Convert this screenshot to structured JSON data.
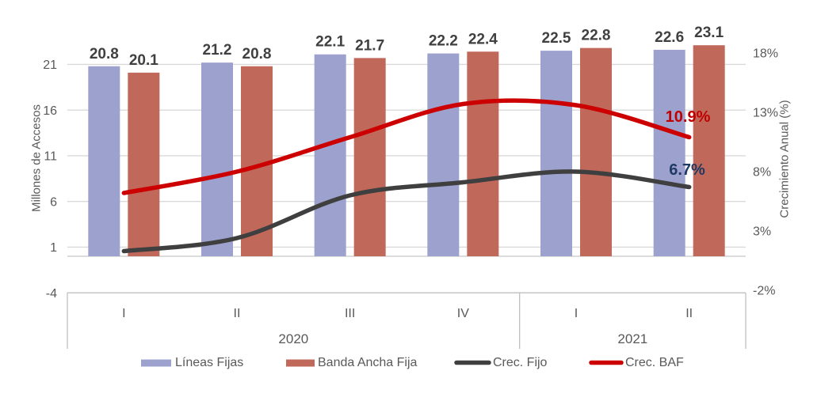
{
  "chart_data": {
    "type": "combo_bar_line",
    "quarters": [
      "I",
      "II",
      "III",
      "IV",
      "I",
      "II"
    ],
    "year_groups": [
      {
        "label": "2020",
        "count": 4
      },
      {
        "label": "2021",
        "count": 2
      }
    ],
    "bar_series": [
      {
        "name": "Líneas Fijas",
        "color": "#9CA1CE",
        "values": [
          20.8,
          21.2,
          22.1,
          22.2,
          22.5,
          22.6
        ]
      },
      {
        "name": "Banda Ancha Fija",
        "color": "#C0695B",
        "values": [
          20.1,
          20.8,
          21.7,
          22.4,
          22.8,
          23.1
        ]
      }
    ],
    "line_series": [
      {
        "name": "Crec. Fijo",
        "color": "#3F3F3F",
        "values_pct": [
          1.3,
          2.4,
          6.0,
          7.1,
          8.0,
          6.7
        ],
        "end_label": "6.7%",
        "end_label_color": "#1F3864"
      },
      {
        "name": "Crec. BAF",
        "color": "#CC0000",
        "values_pct": [
          6.2,
          8.0,
          10.9,
          13.7,
          13.6,
          10.9
        ],
        "end_label": "10.9%",
        "end_label_color": "#C00000"
      }
    ],
    "left_axis": {
      "title": "Millones de Accesos",
      "ticks": [
        -4,
        1,
        6,
        11,
        16,
        21
      ],
      "tick_labels": [
        "-4",
        "1",
        "6",
        "11",
        "16",
        "21"
      ],
      "min": -4,
      "max": 21
    },
    "right_axis": {
      "title": "Crecimiento Anual (%)",
      "ticks": [
        -2,
        3,
        8,
        13,
        18
      ],
      "tick_labels": [
        "-2%",
        "3%",
        "8%",
        "13%",
        "18%"
      ],
      "min": -2,
      "max": 18
    },
    "value_label_format": "one_decimal",
    "colors": {
      "value_label": "#404040",
      "axis_text": "#595959",
      "gridline": "#D9D9D9",
      "zero_baseline": "#C6C6C6",
      "axis_frame": "#BFBFBF"
    },
    "legend_position": "bottom",
    "grid": "horizontal_only"
  }
}
